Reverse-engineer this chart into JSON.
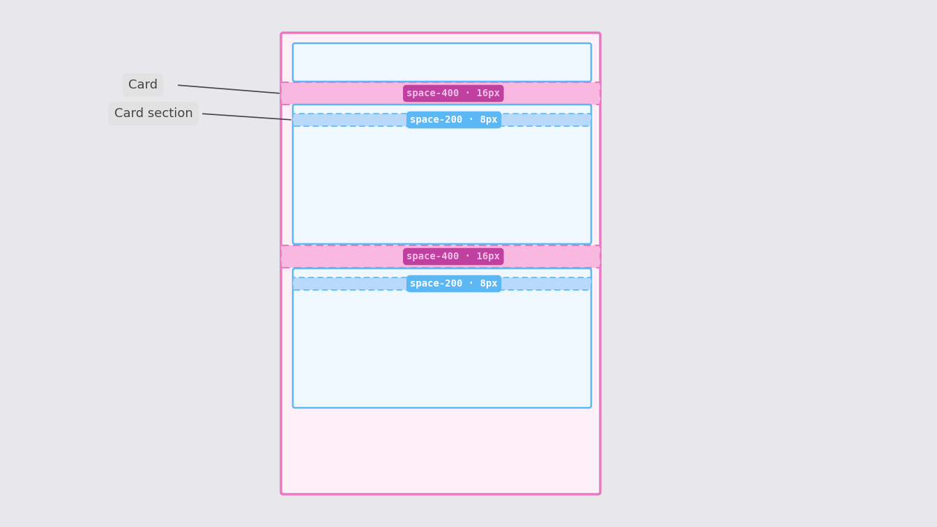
{
  "bg_color": "#e8e8ec",
  "card_outer_color": "#e879c0",
  "card_header_color": "#5bb8f5",
  "card_section_color": "#5bb8f5",
  "gap_fill": "#f9b8df",
  "gap_border_color": "#e879c0",
  "section_gap_fill": "#b8d9f9",
  "section_gap_border_color": "#5bb8f5",
  "space400_label": "space-400 · 16px",
  "space200_label": "space-200 · 8px",
  "space400_pill_color": "#c040a0",
  "space400_pill_text_color": "#f0c0e8",
  "space200_pill_color": "#5bb8f5",
  "space200_pill_text_color": "#ffffff",
  "label_card": "Card",
  "label_card_section": "Card section",
  "label_bg": "#e2e2e2",
  "label_text_color": "#444444",
  "line_color": "#444444",
  "card_facecolor": "#fdf0f8",
  "header_facecolor": "#f0f8ff",
  "section_facecolor": "#f0f8ff"
}
